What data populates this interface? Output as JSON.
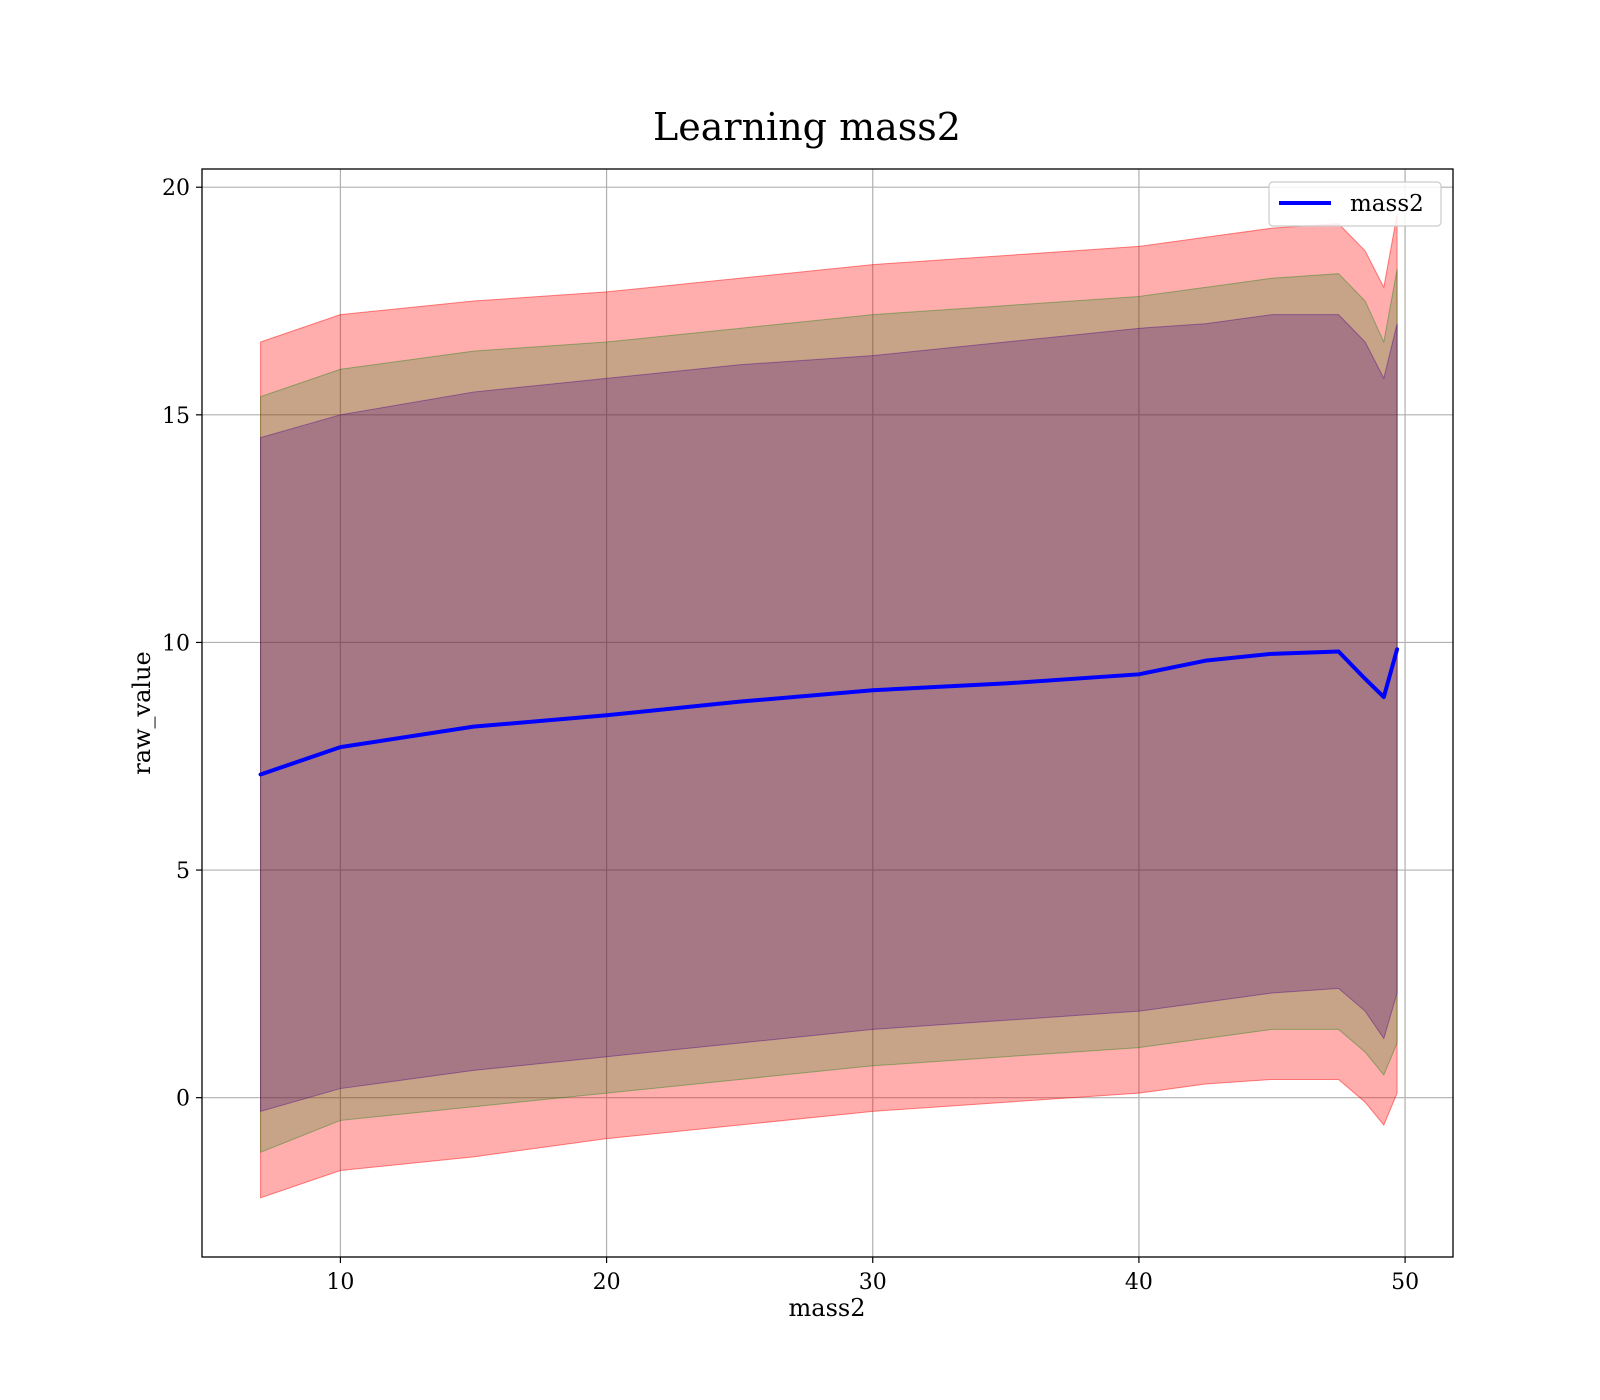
{
  "chart_data": {
    "type": "line",
    "title": "Learning mass2",
    "xlabel": "mass2",
    "ylabel": "raw_value",
    "xlim": [
      4.8,
      51.8
    ],
    "ylim": [
      -3.5,
      20.4
    ],
    "grid": true,
    "legend_position": "top-right",
    "x_ticks": [
      {
        "value": 10,
        "label": "10"
      },
      {
        "value": 20,
        "label": "20"
      },
      {
        "value": 30,
        "label": "30"
      },
      {
        "value": 40,
        "label": "40"
      },
      {
        "value": 50,
        "label": "50"
      }
    ],
    "y_ticks": [
      {
        "value": 0,
        "label": "0"
      },
      {
        "value": 5,
        "label": "5"
      },
      {
        "value": 10,
        "label": "10"
      },
      {
        "value": 15,
        "label": "15"
      },
      {
        "value": 20,
        "label": "20"
      }
    ],
    "x": [
      7.0,
      10.0,
      15.0,
      20.0,
      25.0,
      30.0,
      35.0,
      40.0,
      42.5,
      45.0,
      47.5,
      48.5,
      49.2,
      49.7
    ],
    "series": [
      {
        "name": "mass2",
        "color": "#0000ff",
        "values": [
          7.1,
          7.7,
          8.15,
          8.4,
          8.7,
          8.95,
          9.1,
          9.3,
          9.6,
          9.75,
          9.8,
          9.2,
          8.8,
          9.85
        ]
      }
    ],
    "bands": [
      {
        "color": "#ff0000",
        "opacity": 0.32,
        "lower": [
          -2.2,
          -1.6,
          -1.3,
          -0.9,
          -0.6,
          -0.3,
          -0.1,
          0.1,
          0.3,
          0.4,
          0.4,
          -0.1,
          -0.6,
          0.1
        ],
        "upper": [
          16.6,
          17.2,
          17.5,
          17.7,
          18.0,
          18.3,
          18.5,
          18.7,
          18.9,
          19.1,
          19.2,
          18.6,
          17.8,
          19.4
        ]
      },
      {
        "color": "#008000",
        "opacity": 0.22,
        "lower": [
          -1.2,
          -0.5,
          -0.2,
          0.1,
          0.4,
          0.7,
          0.9,
          1.1,
          1.3,
          1.5,
          1.5,
          1.0,
          0.5,
          1.2
        ],
        "upper": [
          15.4,
          16.0,
          16.4,
          16.6,
          16.9,
          17.2,
          17.4,
          17.6,
          17.8,
          18.0,
          18.1,
          17.5,
          16.6,
          18.2
        ]
      },
      {
        "color": "#4b0082",
        "opacity": 0.26,
        "lower": [
          -0.3,
          0.2,
          0.6,
          0.9,
          1.2,
          1.5,
          1.7,
          1.9,
          2.1,
          2.3,
          2.4,
          1.9,
          1.3,
          2.3
        ],
        "upper": [
          14.5,
          15.0,
          15.5,
          15.8,
          16.1,
          16.3,
          16.6,
          16.9,
          17.0,
          17.2,
          17.2,
          16.6,
          15.8,
          17.0
        ]
      }
    ]
  }
}
